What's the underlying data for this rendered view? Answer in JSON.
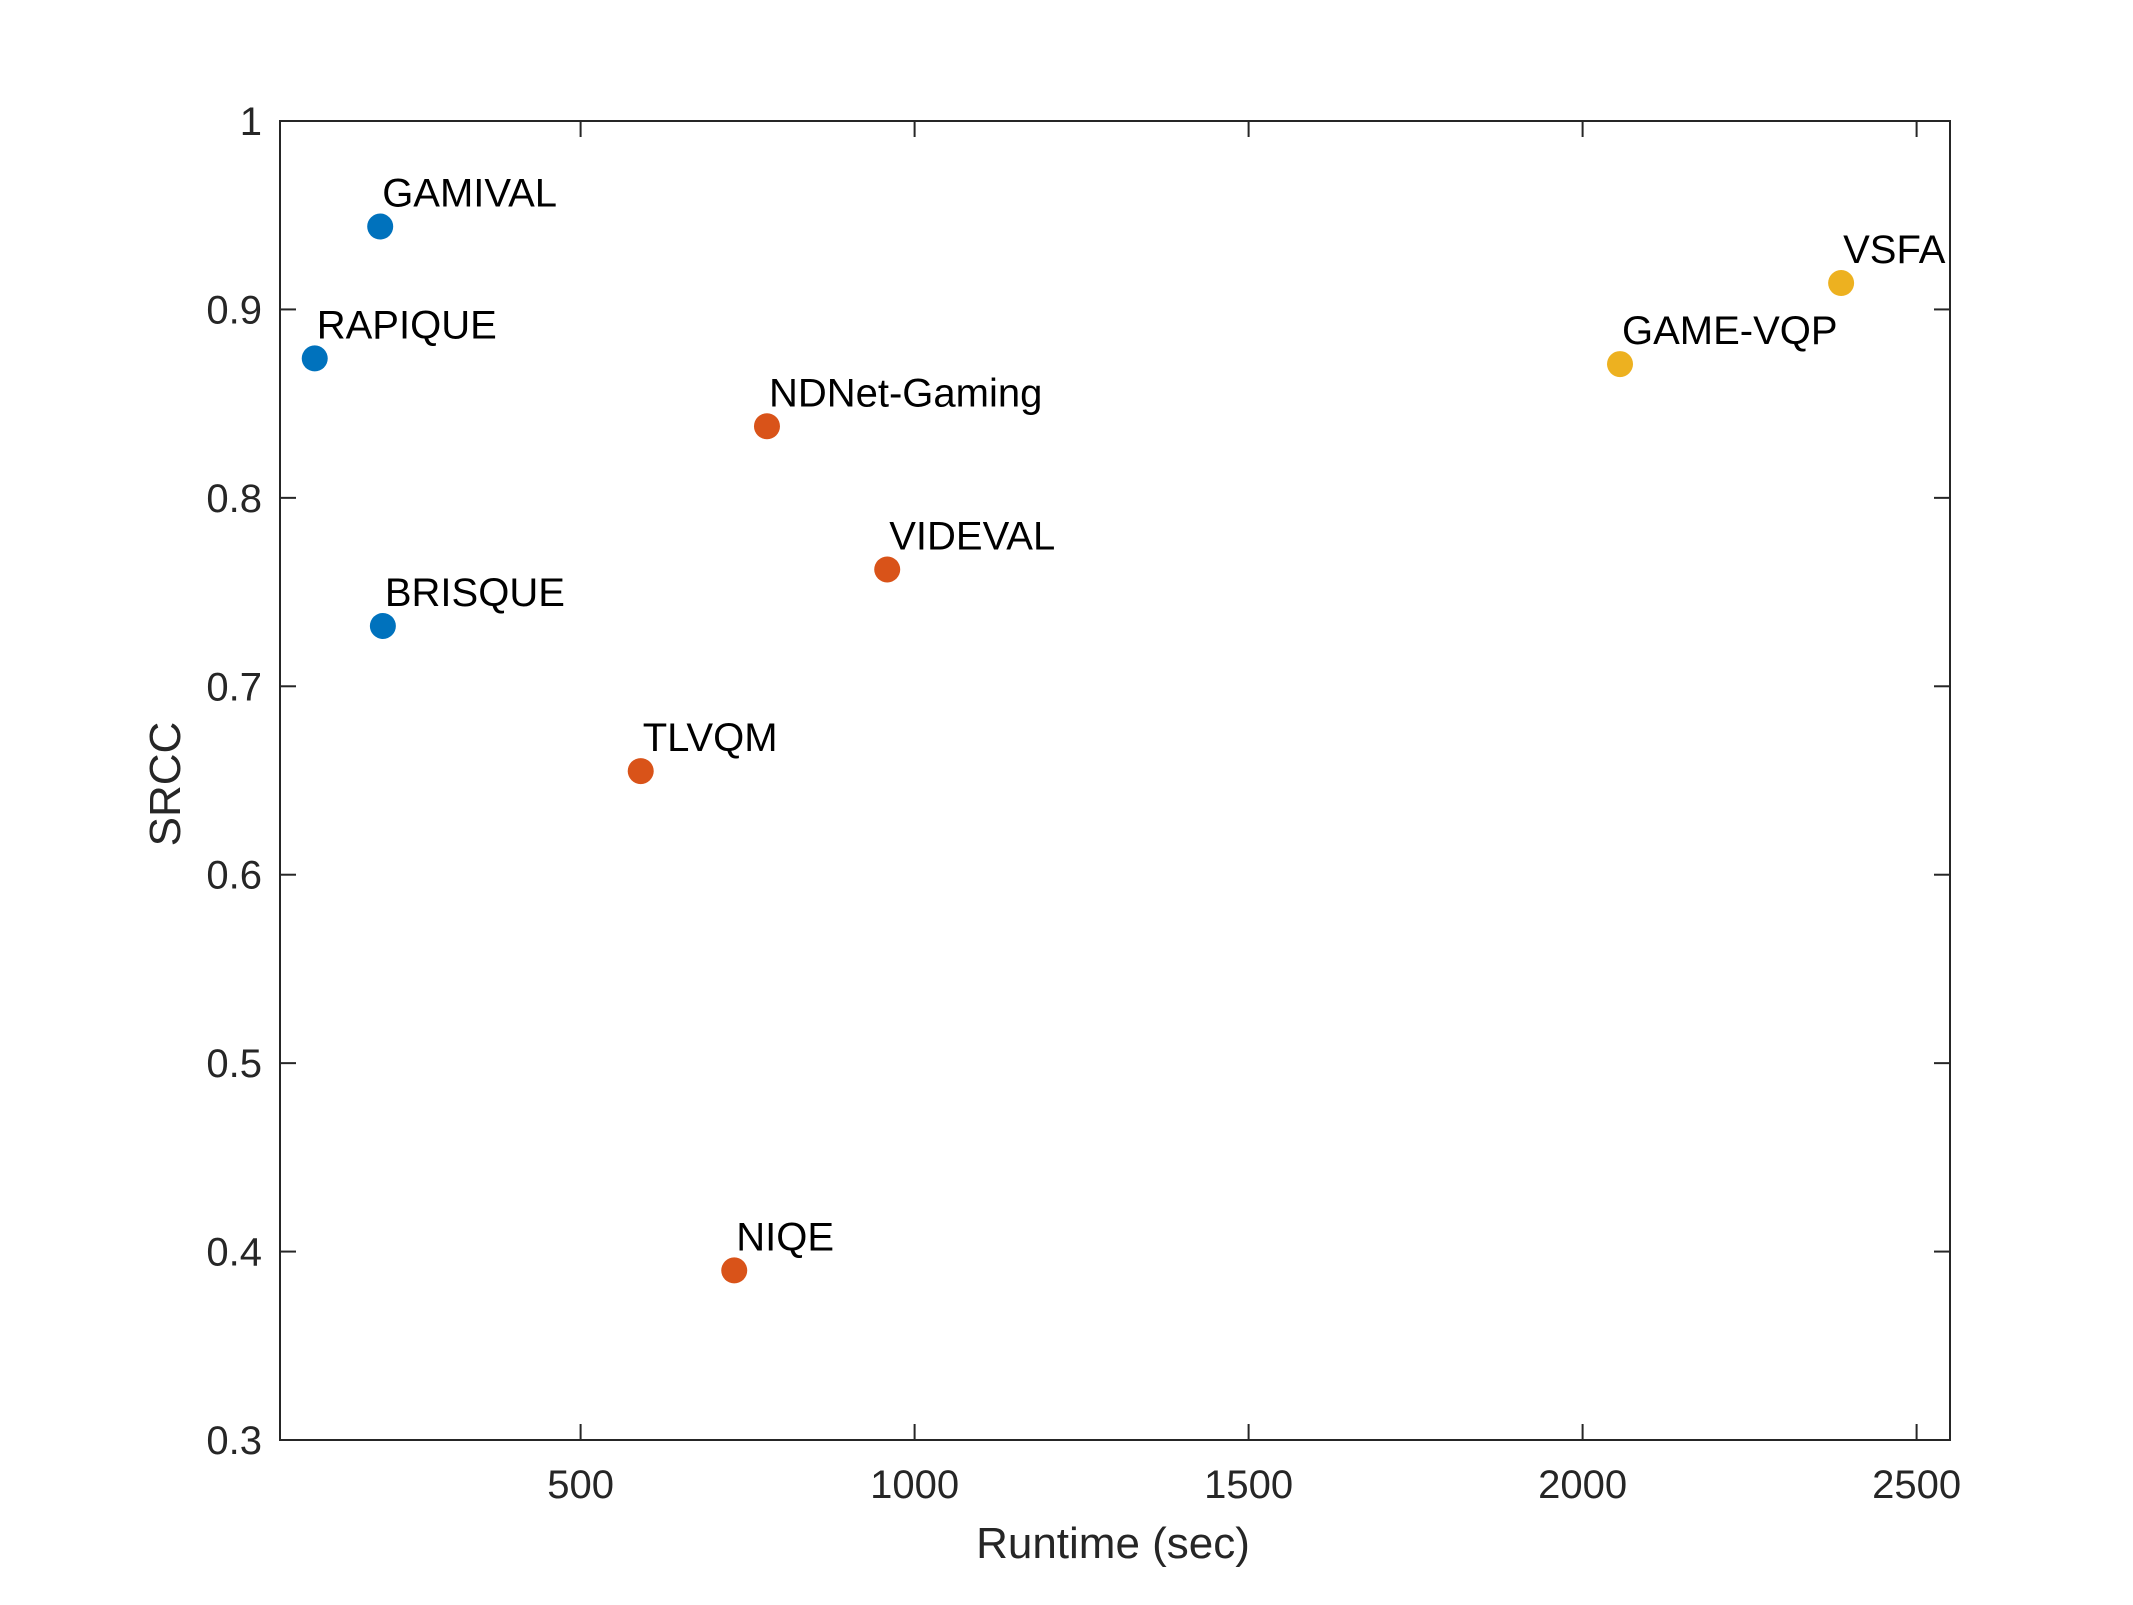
{
  "chart_data": {
    "type": "scatter",
    "title": "",
    "xlabel": "Runtime (sec)",
    "ylabel": "SRCC",
    "xlim": [
      50,
      2550
    ],
    "ylim": [
      0.3,
      1.0
    ],
    "xticks": [
      500,
      1000,
      1500,
      2000,
      2500
    ],
    "yticks": [
      0.3,
      0.4,
      0.5,
      0.6,
      0.7,
      0.8,
      0.9,
      1.0
    ],
    "xtick_labels": [
      "500",
      "1000",
      "1500",
      "2000",
      "2500"
    ],
    "ytick_labels": [
      "0.3",
      "0.4",
      "0.5",
      "0.6",
      "0.7",
      "0.8",
      "0.9",
      "1"
    ],
    "grid": false,
    "legend": "none",
    "colors": {
      "blue": "#0072BD",
      "orange": "#D95319",
      "yellow": "#EDB120",
      "axis": "#262626"
    },
    "points": [
      {
        "label": "GAMIVAL",
        "x": 200,
        "y": 0.944,
        "color": "blue"
      },
      {
        "label": "RAPIQUE",
        "x": 102,
        "y": 0.874,
        "color": "blue"
      },
      {
        "label": "BRISQUE",
        "x": 204,
        "y": 0.732,
        "color": "blue"
      },
      {
        "label": "NDNet-Gaming",
        "x": 779,
        "y": 0.838,
        "color": "orange"
      },
      {
        "label": "VIDEVAL",
        "x": 959,
        "y": 0.762,
        "color": "orange"
      },
      {
        "label": "TLVQM",
        "x": 590,
        "y": 0.655,
        "color": "orange"
      },
      {
        "label": "NIQE",
        "x": 730,
        "y": 0.39,
        "color": "orange"
      },
      {
        "label": "GAME-VQP",
        "x": 2056,
        "y": 0.871,
        "color": "yellow"
      },
      {
        "label": "VSFA",
        "x": 2387,
        "y": 0.914,
        "color": "yellow"
      }
    ]
  }
}
